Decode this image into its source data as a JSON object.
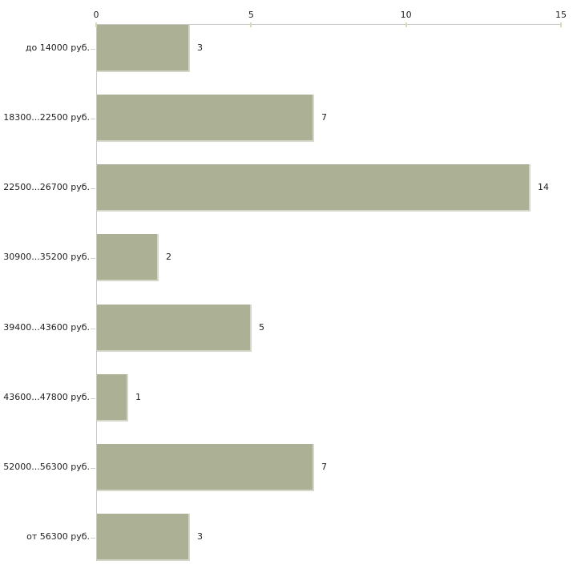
{
  "chart_data": {
    "type": "bar",
    "orientation": "horizontal",
    "title": "",
    "xlabel": "",
    "ylabel": "",
    "categories": [
      "до 14000 руб.",
      "18300...22500 руб.",
      "22500...26700 руб.",
      "30900...35200 руб.",
      "39400...43600 руб.",
      "43600...47800 руб.",
      "52000...56300 руб.",
      "от 56300 руб."
    ],
    "values": [
      3,
      7,
      14,
      2,
      5,
      1,
      7,
      3
    ],
    "xlim": [
      0,
      15
    ],
    "x_ticks": [
      "0",
      "5",
      "10",
      "15"
    ],
    "x_tick_values": [
      0,
      5,
      10,
      15
    ],
    "axis_position": "top",
    "grid": false,
    "legend": false,
    "value_labels": [
      "3",
      "7",
      "14",
      "2",
      "5",
      "1",
      "7",
      "3"
    ],
    "colors": {
      "bar_fill": "#acb195",
      "bar_edge": "#d5d8c8",
      "axis_line": "#c8c8c8",
      "x_tick_mark": "#d8dbb4",
      "y_tick_mark": "#d2d0c2",
      "text": "#1e1e1e",
      "background": "#ffffff"
    }
  }
}
